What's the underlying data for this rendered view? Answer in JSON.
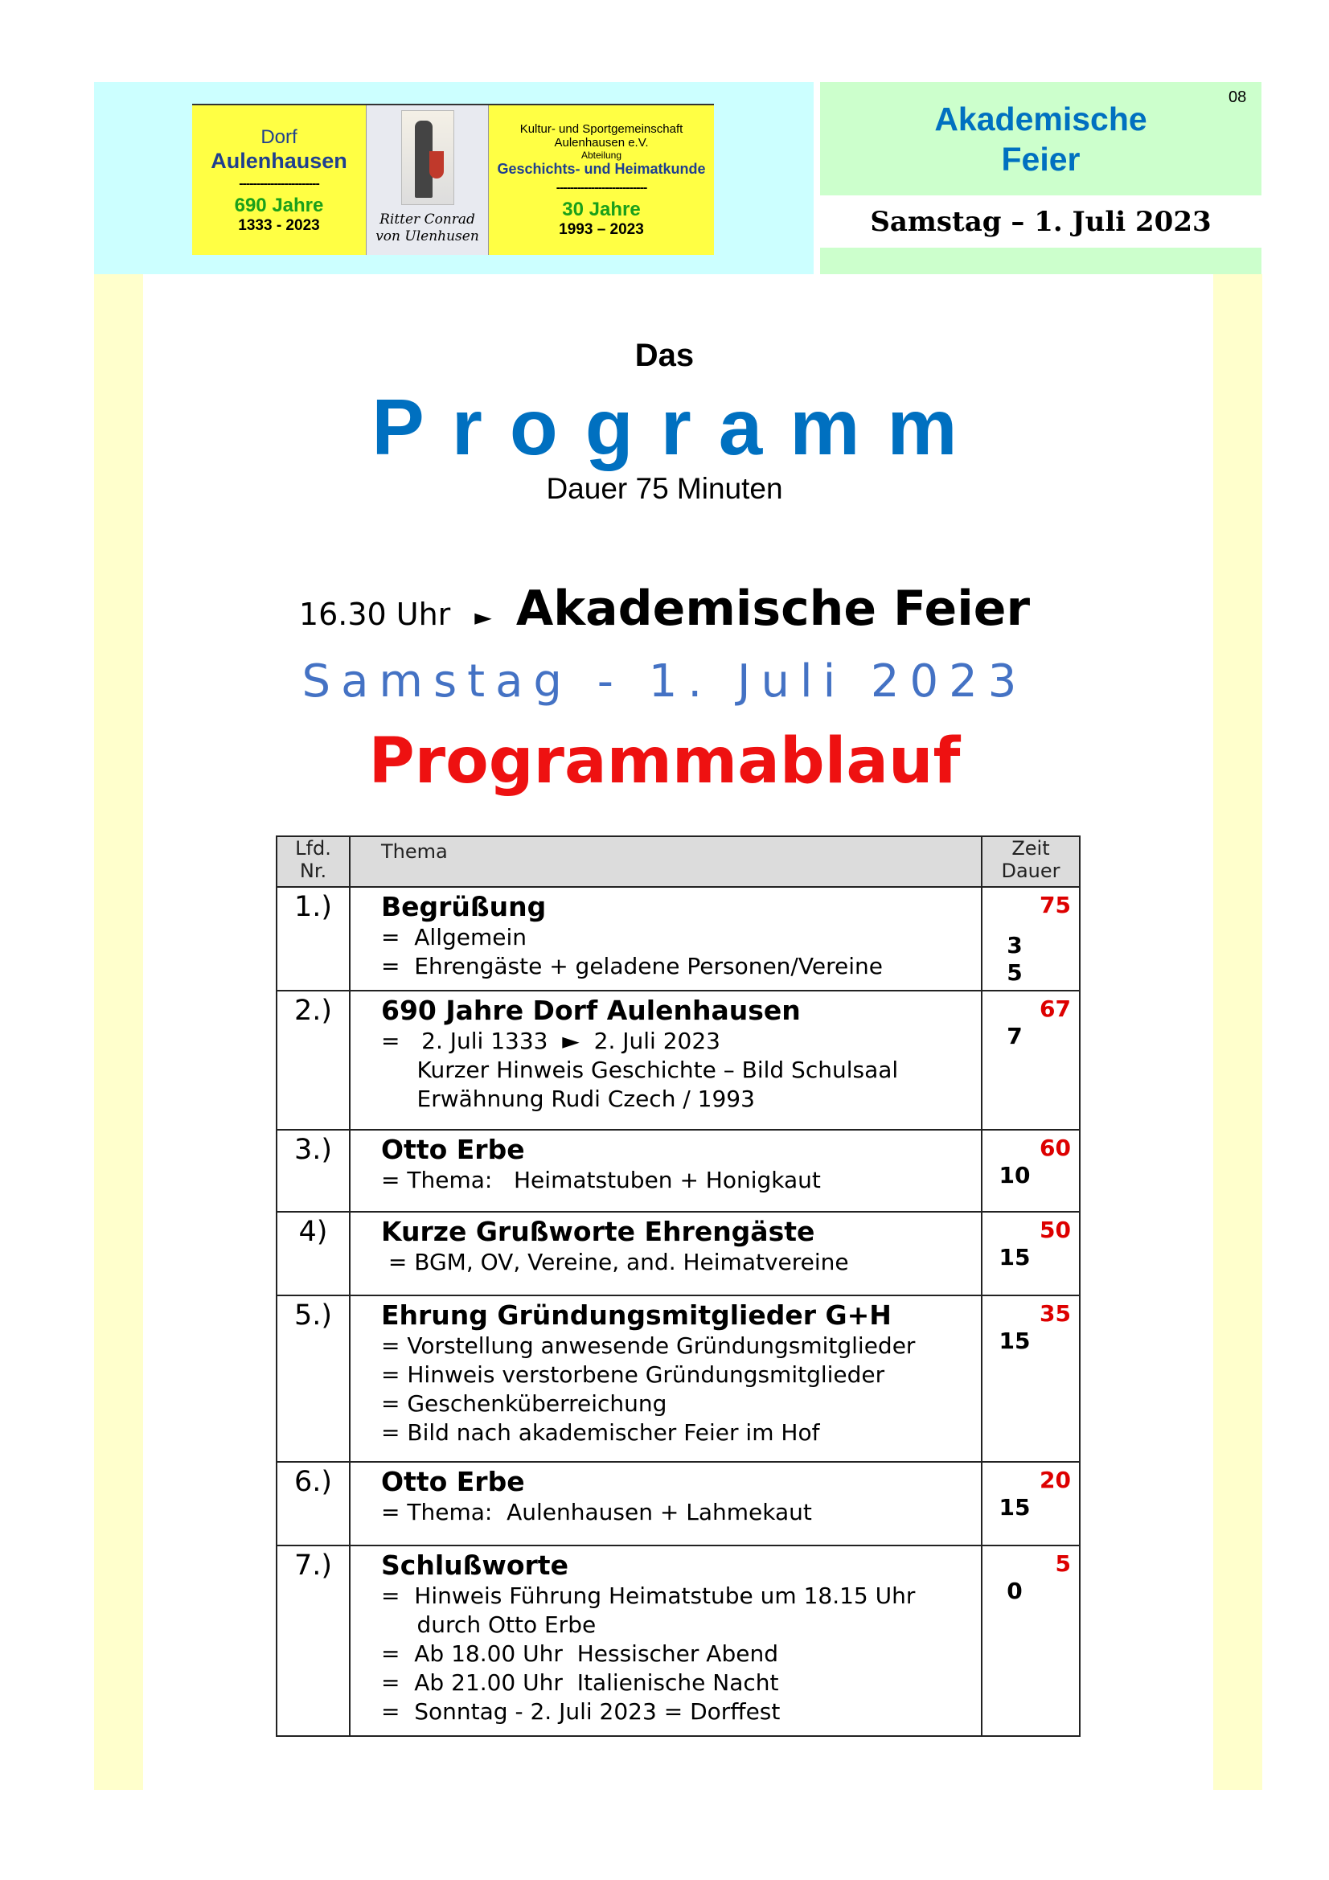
{
  "page_number": "08",
  "logo": {
    "left_line1": "Dorf",
    "left_line2": "Aulenhausen",
    "left_sep": "-----------------------",
    "left_years": "690 Jahre",
    "left_range": "1333 - 2023",
    "knight_caption1": "Ritter Conrad",
    "knight_caption2": "von Ulenhusen",
    "right_line1": "Kultur- und Sportgemeinschaft",
    "right_line2": "Aulenhausen e.V.",
    "right_line3": "Abteilung",
    "right_line4": "Geschichts- und Heimatkunde",
    "right_sep": "--------------------------",
    "right_years": "30 Jahre",
    "right_range": "1993 – 2023"
  },
  "header": {
    "title_line1": "Akademische",
    "title_line2": "Feier",
    "date": "Samstag – 1. Juli 2023"
  },
  "intro": {
    "das": "Das",
    "programm": "Programm",
    "duration": "Dauer 75 Minuten",
    "time": "16.30 Uhr",
    "arrow": "►",
    "event": "Akademische Feier",
    "date": "Samstag  -  1. Juli 2023",
    "heading": "Programmablauf"
  },
  "colors": {
    "blue": "#0070c0",
    "red": "#ee1111",
    "date_blue": "#4472c4",
    "cyan": "#ccffff",
    "green": "#ccffcc",
    "yellow": "#ffffcc"
  },
  "table": {
    "headers": {
      "nr1": "Lfd.",
      "nr2": "Nr.",
      "thema": "Thema",
      "zeit1": "Zeit",
      "zeit2": "Dauer"
    },
    "rows": [
      {
        "nr": "1.)",
        "title": "Begrüßung",
        "lines": [
          "=  Allgemein",
          "=  Ehrengäste + geladene Personen/Vereine"
        ],
        "zeit": "75",
        "dauer": [
          "3",
          "5"
        ]
      },
      {
        "nr": "2.)",
        "title": "690 Jahre Dorf Aulenhausen",
        "lines": [
          "=   2. Juli 1333  ►  2. Juli 2023",
          "     Kurzer Hinweis Geschichte – Bild Schulsaal",
          "     Erwähnung Rudi Czech / 1993"
        ],
        "zeit": "67",
        "dauer": [
          "7"
        ]
      },
      {
        "nr": "3.)",
        "title": "Otto Erbe",
        "lines": [
          "= Thema:   Heimatstuben + Honigkaut"
        ],
        "zeit": "60",
        "dauer": [
          "10"
        ]
      },
      {
        "nr": "4)",
        "title": "Kurze Grußworte Ehrengäste",
        "lines": [
          " = BGM, OV, Vereine, and. Heimatvereine"
        ],
        "zeit": "50",
        "dauer": [
          "15"
        ]
      },
      {
        "nr": "5.)",
        "title": "Ehrung Gründungsmitglieder G+H",
        "lines": [
          "= Vorstellung anwesende Gründungsmitglieder",
          "= Hinweis verstorbene Gründungsmitglieder",
          "= Geschenküberreichung",
          "= Bild nach akademischer Feier im Hof"
        ],
        "zeit": "35",
        "dauer": [
          "15"
        ]
      },
      {
        "nr": "6.)",
        "title": "Otto Erbe",
        "lines": [
          "= Thema:  Aulenhausen + Lahmekaut"
        ],
        "zeit": "20",
        "dauer": [
          "15"
        ]
      },
      {
        "nr": "7.)",
        "title": "Schlußworte",
        "lines": [
          "=  Hinweis Führung Heimatstube um 18.15 Uhr",
          "     durch Otto Erbe",
          "=  Ab 18.00 Uhr  Hessischer Abend",
          "=  Ab 21.00 Uhr  Italienische Nacht",
          "=  Sonntag - 2. Juli 2023 = Dorffest"
        ],
        "zeit": "5",
        "dauer": [
          "0"
        ]
      }
    ]
  }
}
